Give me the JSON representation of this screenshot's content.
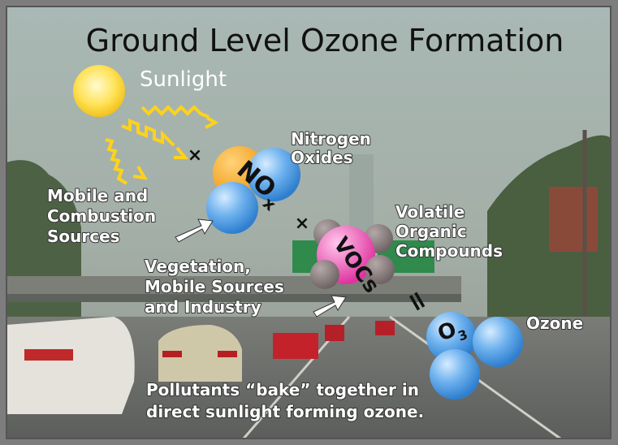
{
  "title": "Ground Level Ozone Formation",
  "sunlight": {
    "label": "Sunlight"
  },
  "operators": {
    "times_1": "×",
    "times_2": "×",
    "equals": "="
  },
  "nitrogen_oxides": {
    "symbol": "NO",
    "subscript": "x",
    "caption": [
      "Nitrogen",
      "Oxides"
    ]
  },
  "nox_sources": {
    "lines": [
      "Mobile and",
      "Combustion",
      "Sources"
    ]
  },
  "vocs": {
    "symbol": "VOCs",
    "caption": [
      "Volatile",
      "Organic",
      "Compounds"
    ]
  },
  "voc_sources": {
    "lines": [
      "Vegetation,",
      "Mobile Sources",
      "and Industry"
    ]
  },
  "ozone": {
    "symbol": "O",
    "subscript": "3",
    "caption": "Ozone"
  },
  "footer": {
    "lines": [
      "Pollutants “bake” together in",
      "direct sunlight forming ozone."
    ]
  }
}
